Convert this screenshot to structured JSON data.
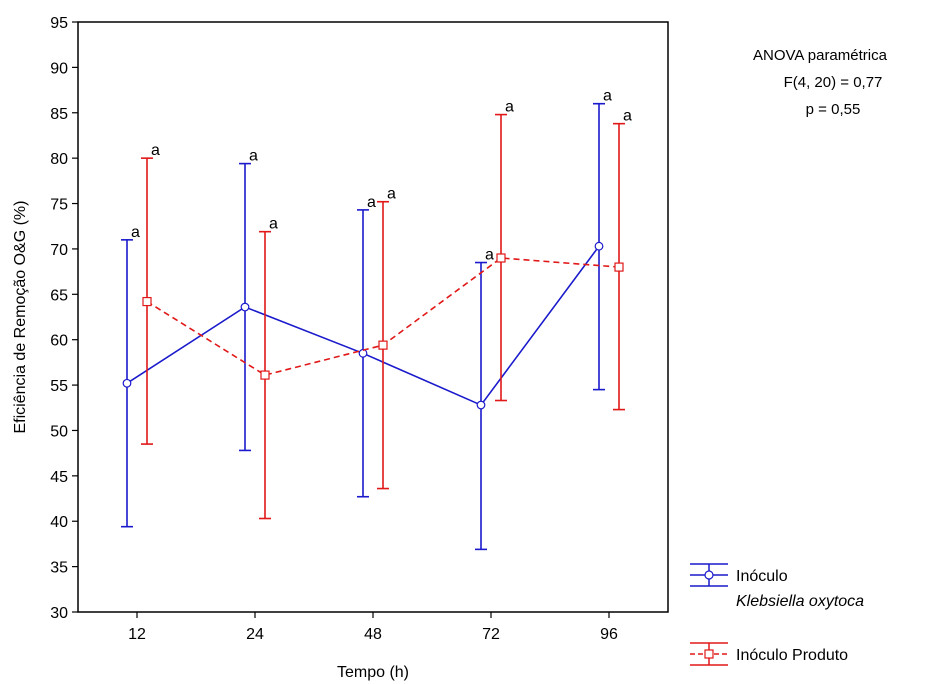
{
  "chart_data": {
    "type": "line",
    "xlabel": "Tempo (h)",
    "ylabel": "Eficiência de Remoção O&G (%)",
    "categories": [
      "12",
      "24",
      "48",
      "72",
      "96"
    ],
    "ylim": [
      30,
      95
    ],
    "yticks": [
      30,
      35,
      40,
      45,
      50,
      55,
      60,
      65,
      70,
      75,
      80,
      85,
      90,
      95
    ],
    "grid": false,
    "legend_position": "bottom-right, outside plot",
    "series": [
      {
        "name_line1": "Inóculo",
        "name_line2": "Klebsiella oxytoca",
        "color": "#1a1acc",
        "line_style": "solid",
        "marker": "circle",
        "values": [
          55.2,
          63.6,
          58.5,
          52.8,
          70.3
        ],
        "lower": [
          39.4,
          47.8,
          42.7,
          36.9,
          54.5
        ],
        "upper": [
          71.0,
          79.4,
          74.3,
          68.5,
          86.0
        ],
        "sig_labels": [
          "a",
          "a",
          "a",
          "a",
          "a"
        ]
      },
      {
        "name": "Inóculo Produto",
        "color": "#e01818",
        "line_style": "dashed",
        "marker": "square",
        "values": [
          64.2,
          56.1,
          59.4,
          69.0,
          68.0
        ],
        "lower": [
          48.5,
          40.3,
          43.6,
          53.3,
          52.3
        ],
        "upper": [
          80.0,
          71.9,
          75.2,
          84.8,
          83.8
        ],
        "sig_labels": [
          "a",
          "a",
          "a",
          "a",
          "a"
        ]
      }
    ],
    "annotation": {
      "line1": "ANOVA paramétrica",
      "line2": "F(4, 20) = 0,77",
      "line3": "p = 0,55"
    }
  }
}
